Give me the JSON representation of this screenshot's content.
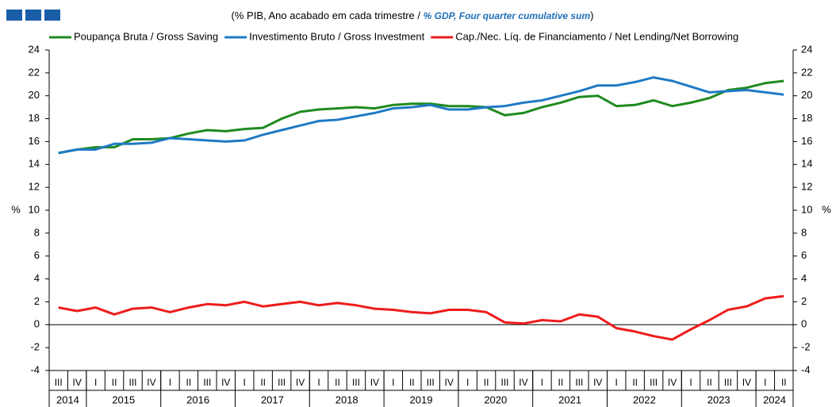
{
  "chart_data": {
    "type": "line",
    "subtitle_parts": [
      "(% PIB, Ano acabado em cada trimestre / ",
      "% GDP, Four quarter cumulative sum",
      ")"
    ],
    "y_label": "%",
    "y2_label": "%",
    "categories": [
      "III",
      "IV",
      "I",
      "II",
      "III",
      "IV",
      "I",
      "II",
      "III",
      "IV",
      "I",
      "II",
      "III",
      "IV",
      "I",
      "II",
      "III",
      "IV",
      "I",
      "II",
      "III",
      "IV",
      "I",
      "II",
      "III",
      "IV",
      "I",
      "II",
      "III",
      "IV",
      "I",
      "II",
      "III",
      "IV",
      "I",
      "II",
      "III",
      "IV",
      "I",
      "II"
    ],
    "x_groups": [
      {
        "label": "2014",
        "size": 2
      },
      {
        "label": "2015",
        "size": 4
      },
      {
        "label": "2016",
        "size": 4
      },
      {
        "label": "2017",
        "size": 4
      },
      {
        "label": "2018",
        "size": 4
      },
      {
        "label": "2019",
        "size": 4
      },
      {
        "label": "2020",
        "size": 4
      },
      {
        "label": "2021",
        "size": 4
      },
      {
        "label": "2022",
        "size": 4
      },
      {
        "label": "2023",
        "size": 4
      },
      {
        "label": "2024",
        "size": 2
      }
    ],
    "ylim": [
      -4,
      24
    ],
    "yticks": [
      -4,
      -2,
      0,
      2,
      4,
      6,
      8,
      10,
      12,
      14,
      16,
      18,
      20,
      22,
      24
    ],
    "y2lim": [
      -4,
      24
    ],
    "y2ticks": [
      -4,
      -2,
      0,
      2,
      4,
      6,
      8,
      10,
      12,
      14,
      16,
      18,
      20,
      22,
      24
    ],
    "series": [
      {
        "name": "Poupança Bruta / Gross Saving",
        "color": "#1f8a1f",
        "values": [
          15.0,
          15.3,
          15.5,
          15.5,
          16.2,
          16.2,
          16.3,
          16.7,
          17.0,
          16.9,
          17.1,
          17.2,
          18.0,
          18.6,
          18.8,
          18.9,
          19.0,
          18.9,
          19.2,
          19.3,
          19.3,
          19.1,
          19.1,
          19.0,
          18.3,
          18.5,
          19.0,
          19.4,
          19.9,
          20.0,
          19.1,
          19.2,
          19.6,
          19.1,
          19.4,
          19.8,
          20.5,
          20.7,
          21.1,
          21.3
        ]
      },
      {
        "name": "Investimento Bruto / Gross Investment",
        "color": "#1f7ac4",
        "values": [
          15.0,
          15.3,
          15.3,
          15.8,
          15.8,
          15.9,
          16.3,
          16.2,
          16.1,
          16.0,
          16.1,
          16.6,
          17.0,
          17.4,
          17.8,
          17.9,
          18.2,
          18.5,
          18.9,
          19.0,
          19.2,
          18.8,
          18.8,
          19.0,
          19.1,
          19.4,
          19.6,
          20.0,
          20.4,
          20.9,
          20.9,
          21.2,
          21.6,
          21.3,
          20.8,
          20.3,
          20.4,
          20.5,
          20.3,
          20.1
        ]
      },
      {
        "name": "Cap./Nec. Líq. de Financiamento / Net Lending/Net Borrowing",
        "color": "#ee1c1c",
        "values": [
          1.5,
          1.2,
          1.5,
          0.9,
          1.4,
          1.5,
          1.1,
          1.5,
          1.8,
          1.7,
          2.0,
          1.6,
          1.8,
          2.0,
          1.7,
          1.9,
          1.7,
          1.4,
          1.3,
          1.1,
          1.0,
          1.3,
          1.3,
          1.1,
          0.2,
          0.1,
          0.4,
          0.3,
          0.9,
          0.7,
          -0.3,
          -0.6,
          -1.0,
          -1.3,
          -0.4,
          0.4,
          1.3,
          1.6,
          2.3,
          2.5
        ]
      }
    ]
  }
}
